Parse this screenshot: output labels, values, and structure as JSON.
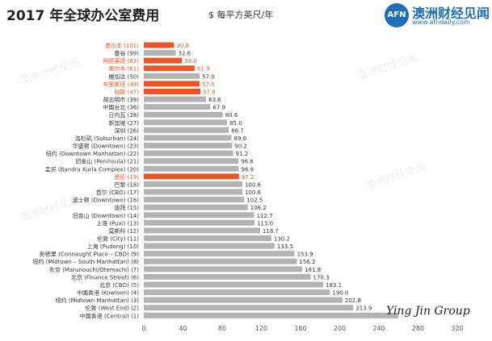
{
  "header": {
    "title": "2017 年全球办公室费用",
    "unit": "$ 每平方英尺/年"
  },
  "logo": {
    "mark": "AFN",
    "brand": "澳洲财经见闻",
    "site": "www.afndaily.com"
  },
  "watermark": "澳洲财经见闻",
  "signature": "Ying Jin Group",
  "colors": {
    "highlight": "#e8562b",
    "bar": "#b3b3b3",
    "text": "#333333",
    "brand": "#1f6fb7"
  },
  "chart_data": {
    "type": "bar",
    "orientation": "horizontal",
    "categories": [
      "墨尔本 (102)",
      "曼谷 (99)",
      "阿德莱德 (83)",
      "墨尔本 (61)",
      "檀加达 (50)",
      "布里斯班 (49)",
      "珀斯 (47)",
      "胡志明市 (39)",
      "中国台北 (36)",
      "日内瓦 (28)",
      "新加坡 (27)",
      "深圳 (26)",
      "洛杉矶 (Suburban) (24)",
      "华盛顿 (Downtown) (23)",
      "纽约 (Downtown Manhattan) (22)",
      "旧金山 (Peninsula) (21)",
      "孟买 (Bandra Kurla Complex) (20)",
      "悉尼 (19)",
      "巴黎 (18)",
      "首尔 (CBD) (17)",
      "波士顿 (Downtown) (16)",
      "迪拜 (15)",
      "旧金山 (Downtown) (14)",
      "上海 (Puxi) (13)",
      "莫斯科 (12)",
      "伦敦 (City) (11)",
      "上海 (Pudong) (10)",
      "新德里 (Connaught Place – CBD) (9)",
      "纽约 (Midtown – South Manhattan) (8)",
      "东京 (Marunouchi/Otemachi) (7)",
      "北京 (Finance Street) (6)",
      "北京 (CBD) (5)",
      "中国香港 (Kowloon) (4)",
      "纽约 (Midtown Manhattan) (3)",
      "伦敦 (West End) (2)",
      "中国香港 (Central) (1)"
    ],
    "values": [
      30.8,
      32.6,
      39.0,
      51.9,
      57.0,
      57.0,
      57.8,
      63.6,
      67.9,
      80.6,
      85.0,
      86.7,
      89.6,
      90.2,
      91.2,
      96.6,
      96.9,
      97.2,
      100.6,
      100.6,
      102.5,
      106.2,
      112.7,
      113.0,
      118.7,
      130.2,
      133.5,
      153.9,
      156.2,
      161.8,
      170.3,
      183.1,
      190.0,
      202.8,
      213.9,
      260.0
    ],
    "highlighted": [
      true,
      false,
      true,
      true,
      false,
      true,
      true,
      false,
      false,
      false,
      false,
      false,
      false,
      false,
      false,
      false,
      false,
      true,
      false,
      false,
      false,
      false,
      false,
      false,
      false,
      false,
      false,
      false,
      false,
      false,
      false,
      false,
      false,
      false,
      false,
      false
    ],
    "value_labels": [
      "30.8",
      "32.6",
      "39.0",
      "51.9",
      "57.0",
      "57.0",
      "57.8",
      "63.6",
      "67.9",
      "80.6",
      "85.0",
      "86.7",
      "89.6",
      "90.2",
      "91.2",
      "96.6",
      "96.9",
      "97.2",
      "100.6",
      "100.6",
      "102.5",
      "106.2",
      "112.7",
      "113.0",
      "118.7",
      "130.2",
      "133.5",
      "153.9",
      "156.2",
      "161.8",
      "170.3",
      "183.1",
      "190.0",
      "202.8",
      "213.9",
      ""
    ],
    "xlim": [
      0,
      320
    ],
    "xticks": [
      0,
      40,
      80,
      120,
      160,
      200,
      240,
      280,
      320
    ],
    "grid": false,
    "legend": "none"
  }
}
